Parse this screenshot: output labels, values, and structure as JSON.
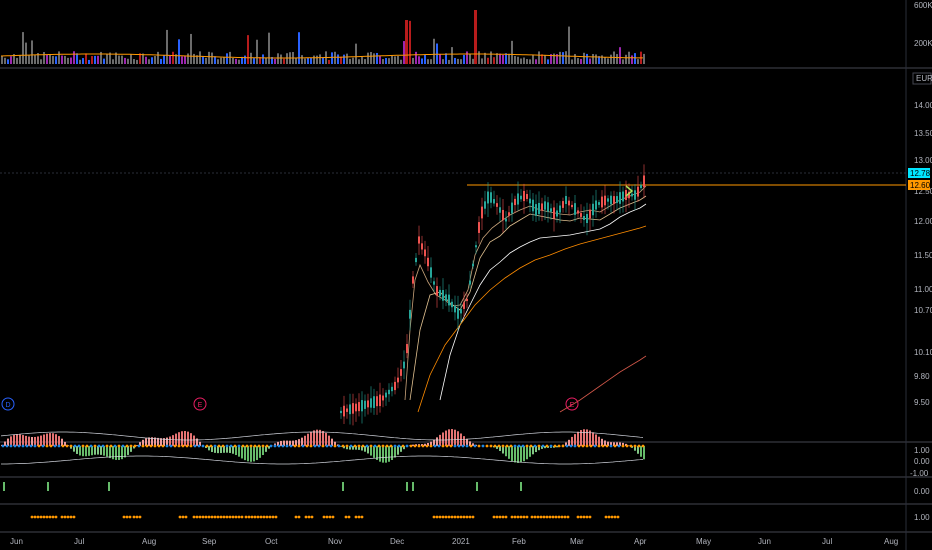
{
  "volume_pane": {
    "ticks": [
      "600K",
      "200K"
    ]
  },
  "price_pane": {
    "currency": "EUR",
    "ticks": [
      "14.00",
      "13.50",
      "13.00",
      "12.50",
      "12.00",
      "11.50",
      "11.00",
      "10.70",
      "10.10",
      "9.80",
      "9.50"
    ],
    "last_price": "12.78",
    "level_price": "12.60",
    "event_markers": [
      "D",
      "E",
      "E"
    ],
    "colors": {
      "last_price_bg": "#00e5ff",
      "level_line": "#ff9800",
      "up_candle": "#26a69a",
      "down_candle": "#ef5350"
    }
  },
  "oscillator_pane": {
    "ticks": [
      "1.00",
      "0.00",
      "-1.00"
    ]
  },
  "signal_pane_1": {
    "ticks": [
      "0.00"
    ]
  },
  "signal_pane_2": {
    "ticks": [
      "1.00"
    ]
  },
  "time_axis": {
    "labels": [
      "Jun",
      "Jul",
      "Aug",
      "Sep",
      "Oct",
      "Nov",
      "Dec",
      "2021",
      "Feb",
      "Mar",
      "Apr",
      "May",
      "Jun",
      "Jul",
      "Aug"
    ]
  }
}
